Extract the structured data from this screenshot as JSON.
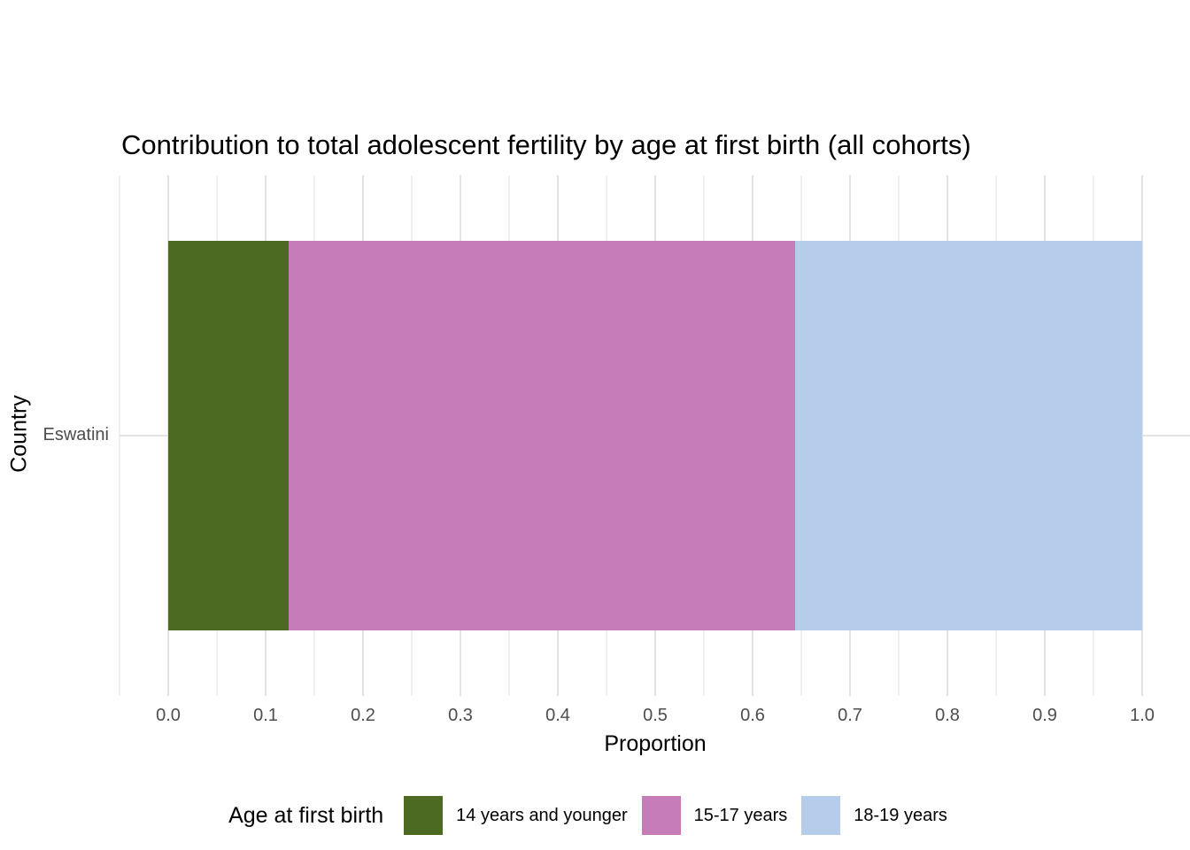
{
  "title": "Contribution to total adolescent fertility by age at first birth (all cohorts)",
  "axes": {
    "x": {
      "label": "Proportion",
      "tick_labels": [
        "0.0",
        "0.1",
        "0.2",
        "0.3",
        "0.4",
        "0.5",
        "0.6",
        "0.7",
        "0.8",
        "0.9",
        "1.0"
      ],
      "range": [
        0.0,
        1.0
      ]
    },
    "y": {
      "label": "Country",
      "categories": [
        "Eswatini"
      ]
    }
  },
  "legend": {
    "title": "Age at first birth",
    "position": "bottom",
    "items": [
      {
        "label": "14 years and younger",
        "color": "#4C6A21"
      },
      {
        "label": "15-17 years",
        "color": "#C77CBA"
      },
      {
        "label": "18-19 years",
        "color": "#B5CDEB"
      }
    ]
  },
  "chart_data": {
    "type": "bar",
    "orientation": "horizontal",
    "stacked": true,
    "title": "Contribution to total adolescent fertility by age at first birth (all cohorts)",
    "xlabel": "Proportion",
    "ylabel": "Country",
    "categories": [
      "Eswatini"
    ],
    "series": [
      {
        "name": "14 years and younger",
        "values": [
          0.124
        ],
        "color": "#4C6A21"
      },
      {
        "name": "15-17 years",
        "values": [
          0.52
        ],
        "color": "#C77CBA"
      },
      {
        "name": "18-19 years",
        "values": [
          0.356
        ],
        "color": "#B5CDEB"
      }
    ],
    "xlim": [
      0.0,
      1.0
    ],
    "x_major_ticks": [
      0.0,
      0.1,
      0.2,
      0.3,
      0.4,
      0.5,
      0.6,
      0.7,
      0.8,
      0.9,
      1.0
    ],
    "x_minor_ticks": [
      0.05,
      0.15,
      0.25,
      0.35,
      0.45,
      0.55,
      0.65,
      0.75,
      0.85,
      0.95
    ],
    "grid": "major_and_minor",
    "legend_position": "bottom"
  },
  "colors": {
    "background": "#FFFFFF",
    "grid_major": "#E3E3E3",
    "grid_minor": "#F0F0F0",
    "tick_label": "#4D4D4D",
    "text": "#000000"
  }
}
